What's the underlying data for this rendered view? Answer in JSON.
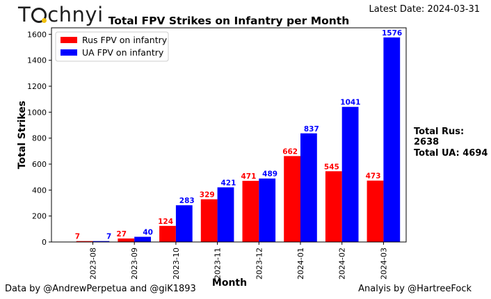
{
  "header": {
    "logo_pre": "T",
    "logo_post": "chnyi",
    "latest_date": "Latest Date: 2024-03-31"
  },
  "totals": {
    "rus": "Total Rus: 2638",
    "ua": "Total UA: 4694"
  },
  "footer": {
    "data_credit": "Data by @AndrewPerpetua and @giK1893",
    "analysis_credit": "Analyis by @HartreeFock"
  },
  "colors": {
    "rus": "#ff0000",
    "ua": "#0000ff"
  },
  "chart_data": {
    "type": "bar",
    "title": "Total FPV Strikes on Infantry per Month",
    "xlabel": "Month",
    "ylabel": "Total Strikes",
    "ylim": [
      0,
      1650
    ],
    "yticks": [
      0,
      200,
      400,
      600,
      800,
      1000,
      1200,
      1400,
      1600
    ],
    "legend_position": "top-left",
    "grid": false,
    "categories": [
      "2023-08",
      "2023-09",
      "2023-10",
      "2023-11",
      "2023-12",
      "2024-01",
      "2024-02",
      "2024-03"
    ],
    "series": [
      {
        "name": "Rus FPV on infantry",
        "color": "#ff0000",
        "values": [
          7,
          27,
          124,
          329,
          471,
          662,
          545,
          473
        ]
      },
      {
        "name": "UA FPV on infantry",
        "color": "#0000ff",
        "values": [
          7,
          40,
          283,
          421,
          489,
          837,
          1041,
          1576
        ]
      }
    ]
  }
}
